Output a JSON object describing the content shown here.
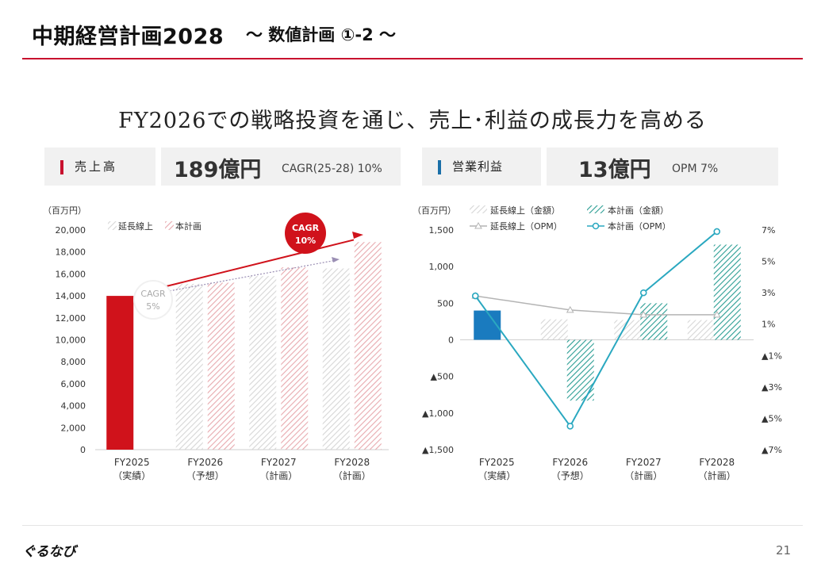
{
  "header": {
    "title": "中期経営計画2028",
    "subtitle": "～ 数値計画 ①-2 ～"
  },
  "headline": "FY2026での戦略投資を通じ、売上･利益の成長力を高める",
  "kpi": [
    {
      "label": "売上高",
      "value": "189億円",
      "note": "CAGR(25-28) 10%",
      "accent": "#c8102e"
    },
    {
      "label": "営業利益",
      "value": "13億円",
      "note": "OPM 7%",
      "accent": "#1a6fa8"
    }
  ],
  "footer": {
    "logo": "ぐるなび",
    "page": "21"
  },
  "chart_data": [
    {
      "type": "bar",
      "unit_label": "（百万円）",
      "categories": [
        "FY2025\n（実績）",
        "FY2026\n（予想）",
        "FY2027\n（計画）",
        "FY2028\n（計画）"
      ],
      "series": [
        {
          "name": "延長線上",
          "values": [
            14000,
            15100,
            15800,
            16500
          ],
          "color": "#d6d6d6"
        },
        {
          "name": "本計画",
          "values": [
            14000,
            15200,
            16600,
            18900
          ],
          "color": "#e7a9ae"
        }
      ],
      "actual_color": "#d0121b",
      "ylim": [
        0,
        20000
      ],
      "yticks": [
        "0",
        "2,000",
        "4,000",
        "6,000",
        "8,000",
        "10,000",
        "12,000",
        "14,000",
        "16,000",
        "18,000",
        "20,000"
      ],
      "annotations": [
        {
          "text": "CAGR 10%",
          "color": "#d0121b"
        },
        {
          "text": "CAGR 5%",
          "color": "#aaaaaa"
        }
      ]
    },
    {
      "type": "bar+line",
      "unit_label": "（百万円）",
      "categories": [
        "FY2025\n（実績）",
        "FY2026\n（予想）",
        "FY2027\n（計画）",
        "FY2028\n（計画）"
      ],
      "bar_series": [
        {
          "name": "延長線上（金額）",
          "values": [
            400,
            280,
            270,
            270
          ],
          "color": "#d6d6d6"
        },
        {
          "name": "本計画（金額）",
          "values": [
            400,
            -830,
            500,
            1300
          ],
          "color": "#2a9d93"
        }
      ],
      "actual_color": "#1a7bbf",
      "line_series": [
        {
          "name": "延長線上（OPM）",
          "values": [
            2.8,
            1.9,
            1.6,
            1.6
          ],
          "color": "#b4b4b4"
        },
        {
          "name": "本計画（OPM）",
          "values": [
            2.8,
            -5.5,
            3.0,
            6.9
          ],
          "color": "#2aa8c0"
        }
      ],
      "ylim": [
        -1500,
        1500
      ],
      "y2lim": [
        -7,
        7
      ],
      "yticks": [
        "▲1,500",
        "▲1,000",
        "▲500",
        "0",
        "500",
        "1,000",
        "1,500"
      ],
      "y2ticks": [
        "▲7%",
        "▲5%",
        "▲3%",
        "▲1%",
        "1%",
        "3%",
        "5%",
        "7%"
      ]
    }
  ]
}
